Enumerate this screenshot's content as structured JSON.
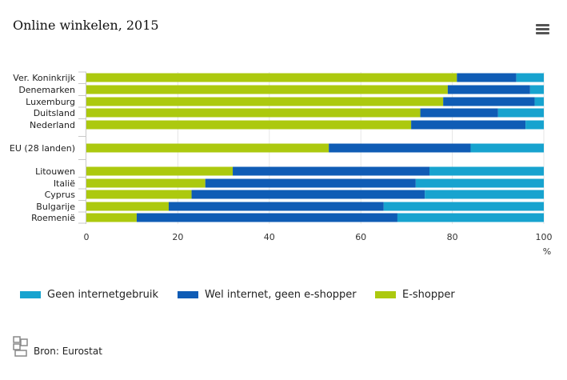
{
  "title": "Online winkelen, 2015",
  "menu_icon": "hamburger-menu-icon",
  "source_text": "Bron: Eurostat",
  "logo_icon": "cbs-logo-icon",
  "colors": {
    "geen": "#17a3cf",
    "wel": "#0f5cb5",
    "eshopper": "#acc90e"
  },
  "chart_data": {
    "type": "bar",
    "orientation": "horizontal",
    "stacked": true,
    "title": "Online winkelen, 2015",
    "xlabel": "%",
    "xlim": [
      0,
      100
    ],
    "x_ticks": [
      0,
      20,
      40,
      60,
      80,
      100
    ],
    "grid": true,
    "legend_position": "bottom",
    "categories": [
      "Ver. Koninkrijk",
      "Denemarken",
      "Luxemburg",
      "Duitsland",
      "Nederland",
      "EU (28 landen)",
      "Litouwen",
      "Italië",
      "Cyprus",
      "Bulgarije",
      "Roemenië"
    ],
    "series": [
      {
        "name": "E-shopper",
        "values": [
          81,
          79,
          78,
          73,
          71,
          53,
          32,
          26,
          23,
          18,
          11
        ]
      },
      {
        "name": "Wel internet, geen e-shopper",
        "values": [
          13,
          18,
          20,
          17,
          25,
          31,
          43,
          46,
          51,
          47,
          57
        ]
      },
      {
        "name": "Geen internetgebruik",
        "values": [
          6,
          3,
          2,
          10,
          4,
          16,
          25,
          28,
          26,
          35,
          32
        ]
      }
    ]
  },
  "legend": [
    {
      "label": "Geen internetgebruik",
      "color_key": "geen"
    },
    {
      "label": "Wel internet, geen e-shopper",
      "color_key": "wel"
    },
    {
      "label": "E-shopper",
      "color_key": "eshopper"
    }
  ]
}
